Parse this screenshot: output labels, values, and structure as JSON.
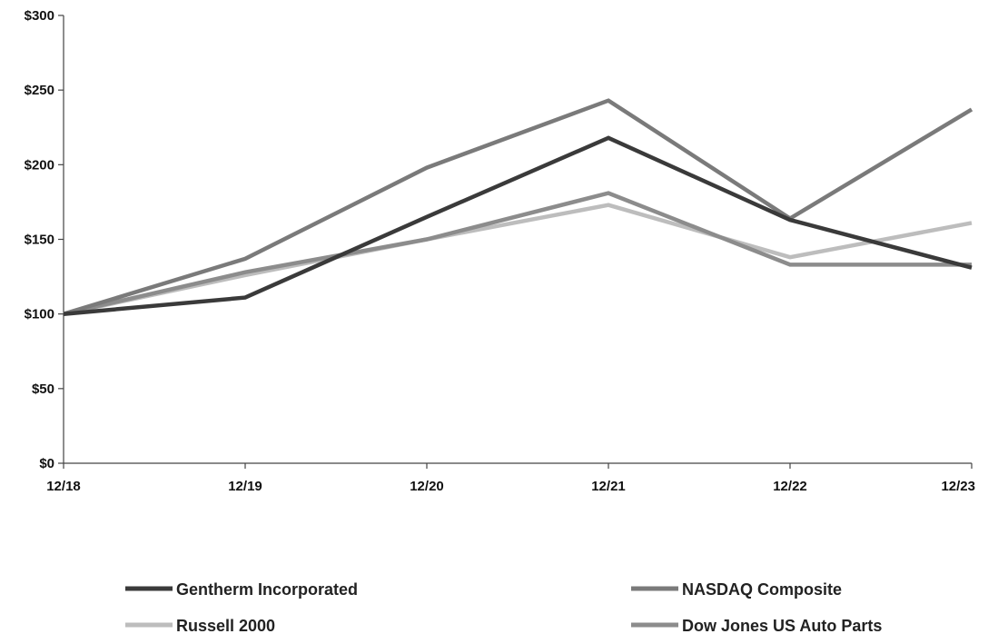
{
  "chart_data": {
    "type": "line",
    "title": "",
    "xlabel": "",
    "ylabel": "",
    "categories": [
      "12/18",
      "12/19",
      "12/20",
      "12/21",
      "12/22",
      "12/23"
    ],
    "ylim": [
      0,
      300
    ],
    "yticks": [
      0,
      50,
      100,
      150,
      200,
      250,
      300
    ],
    "ytick_labels": [
      "$0",
      "$50",
      "$100",
      "$150",
      "$200",
      "$250",
      "$300"
    ],
    "grid": false,
    "legend_position": "bottom",
    "series": [
      {
        "name": "Gentherm Incorporated",
        "values": [
          100,
          111,
          165,
          218,
          163,
          131
        ],
        "color": "#3a3a3a"
      },
      {
        "name": "NASDAQ Composite",
        "values": [
          100,
          137,
          198,
          243,
          164,
          237
        ],
        "color": "#7a7a7a"
      },
      {
        "name": "Russell 2000",
        "values": [
          100,
          126,
          150,
          173,
          138,
          161
        ],
        "color": "#bdbdbd"
      },
      {
        "name": "Dow Jones US Auto Parts",
        "values": [
          100,
          128,
          150,
          181,
          133,
          133
        ],
        "color": "#8c8c8c"
      }
    ]
  }
}
